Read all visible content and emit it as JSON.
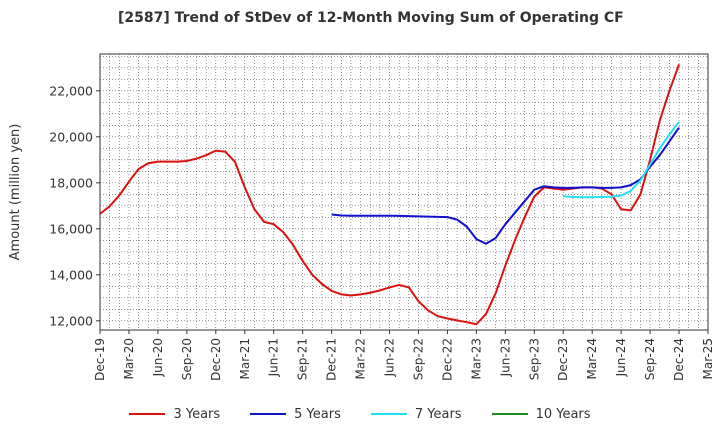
{
  "chart_data": {
    "type": "line",
    "title": "[2587]  Trend of StDev of 12-Month Moving Sum of Operating CF",
    "xlabel": "",
    "ylabel": "Amount (million yen)",
    "ylim": [
      11600,
      23600
    ],
    "xlim": [
      "2019-12",
      "2025-03"
    ],
    "grid": true,
    "legend_position": "bottom",
    "x_tick_labels": [
      "Dec-19",
      "Mar-20",
      "Jun-20",
      "Sep-20",
      "Dec-20",
      "Mar-21",
      "Jun-21",
      "Sep-21",
      "Dec-21",
      "Mar-22",
      "Jun-22",
      "Sep-22",
      "Dec-22",
      "Mar-23",
      "Jun-23",
      "Sep-23",
      "Dec-23",
      "Mar-24",
      "Jun-24",
      "Sep-24",
      "Dec-24",
      "Mar-25"
    ],
    "y_ticks": [
      12000,
      14000,
      16000,
      18000,
      20000,
      22000
    ],
    "y_tick_labels": [
      "12,000",
      "14,000",
      "16,000",
      "18,000",
      "20,000",
      "22,000"
    ],
    "series": [
      {
        "name": "3 Years",
        "color": "#dd1111",
        "x": [
          "2019-12",
          "2020-01",
          "2020-02",
          "2020-03",
          "2020-04",
          "2020-05",
          "2020-06",
          "2020-07",
          "2020-08",
          "2020-09",
          "2020-10",
          "2020-11",
          "2020-12",
          "2021-01",
          "2021-02",
          "2021-03",
          "2021-04",
          "2021-05",
          "2021-06",
          "2021-07",
          "2021-08",
          "2021-09",
          "2021-10",
          "2021-11",
          "2021-12",
          "2022-01",
          "2022-02",
          "2022-03",
          "2022-04",
          "2022-05",
          "2022-06",
          "2022-07",
          "2022-08",
          "2022-09",
          "2022-10",
          "2022-11",
          "2022-12",
          "2023-01",
          "2023-02",
          "2023-03",
          "2023-04",
          "2023-05",
          "2023-06",
          "2023-07",
          "2023-08",
          "2023-09",
          "2023-10",
          "2023-11",
          "2023-12",
          "2024-01",
          "2024-02",
          "2024-03",
          "2024-04",
          "2024-05",
          "2024-06",
          "2024-07",
          "2024-08",
          "2024-09",
          "2024-10",
          "2024-11",
          "2024-12"
        ],
        "values": [
          16650,
          16980,
          17450,
          18050,
          18600,
          18850,
          18920,
          18920,
          18920,
          18950,
          19050,
          19200,
          19400,
          19350,
          18900,
          17800,
          16850,
          16300,
          16200,
          15850,
          15300,
          14600,
          14000,
          13600,
          13300,
          13150,
          13100,
          13150,
          13220,
          13320,
          13450,
          13560,
          13450,
          12850,
          12450,
          12200,
          12100,
          12020,
          11940,
          11850,
          12300,
          13200,
          14400,
          15500,
          16500,
          17400,
          17800,
          17750,
          17700,
          17750,
          17800,
          17800,
          17750,
          17500,
          16850,
          16800,
          17500,
          19000,
          20700,
          22000,
          23150
        ]
      },
      {
        "name": "5 Years",
        "color": "#1111cc",
        "x": [
          "2021-12",
          "2022-01",
          "2022-02",
          "2022-03",
          "2022-04",
          "2022-05",
          "2022-06",
          "2022-07",
          "2022-08",
          "2022-09",
          "2022-10",
          "2022-11",
          "2022-12",
          "2023-01",
          "2023-02",
          "2023-03",
          "2023-04",
          "2023-05",
          "2023-06",
          "2023-07",
          "2023-08",
          "2023-09",
          "2023-10",
          "2023-11",
          "2023-12",
          "2024-01",
          "2024-02",
          "2024-03",
          "2024-04",
          "2024-05",
          "2024-06",
          "2024-07",
          "2024-08",
          "2024-09",
          "2024-10",
          "2024-11",
          "2024-12"
        ],
        "values": [
          16620,
          16580,
          16570,
          16570,
          16570,
          16570,
          16570,
          16560,
          16550,
          16540,
          16530,
          16520,
          16510,
          16400,
          16100,
          15550,
          15350,
          15600,
          16200,
          16700,
          17200,
          17700,
          17850,
          17800,
          17780,
          17780,
          17800,
          17800,
          17780,
          17780,
          17800,
          17900,
          18150,
          18700,
          19200,
          19800,
          20400
        ]
      },
      {
        "name": "7 Years",
        "color": "#22e0f0",
        "x": [
          "2023-12",
          "2024-01",
          "2024-02",
          "2024-03",
          "2024-04",
          "2024-05",
          "2024-06",
          "2024-07",
          "2024-08",
          "2024-09",
          "2024-10",
          "2024-11",
          "2024-12"
        ],
        "values": [
          17420,
          17380,
          17370,
          17370,
          17380,
          17400,
          17450,
          17650,
          18100,
          18800,
          19500,
          20100,
          20650
        ]
      },
      {
        "name": "10 Years",
        "color": "#228822",
        "x": [],
        "values": []
      }
    ]
  }
}
